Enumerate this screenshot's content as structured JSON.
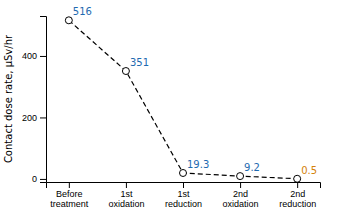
{
  "chart_data": {
    "type": "line",
    "categories": [
      "Before\ntreatment",
      "1st\noxidation",
      "1st\nreduction",
      "2nd\noxidation",
      "2nd\nreduction"
    ],
    "values": [
      516,
      351,
      19.3,
      9.2,
      0.5
    ],
    "ylabel": "Contact dose rate, μSv/hr",
    "ylim": [
      -10,
      530
    ],
    "yticks": [
      0,
      200,
      400
    ],
    "color": "#000000",
    "line_style": "dashed",
    "marker": "circle",
    "data_labels": true,
    "colors": [
      "#1e6ab0",
      "#1e6ab0",
      "#1e6ab0",
      "#1e6ab0",
      "#d4820a"
    ],
    "grid": false
  }
}
